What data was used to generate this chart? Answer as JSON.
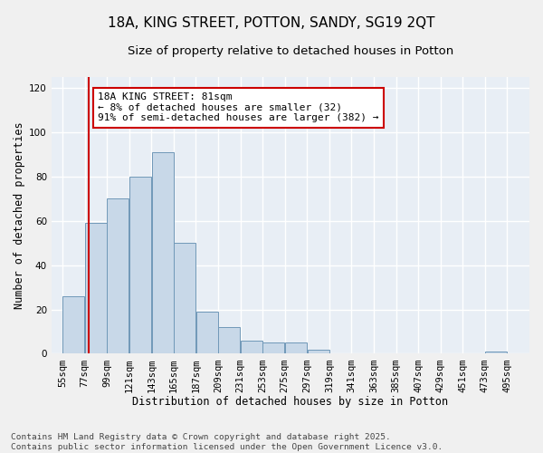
{
  "title_line1": "18A, KING STREET, POTTON, SANDY, SG19 2QT",
  "title_line2": "Size of property relative to detached houses in Potton",
  "xlabel": "Distribution of detached houses by size in Potton",
  "ylabel": "Number of detached properties",
  "bin_labels": [
    "55sqm",
    "77sqm",
    "99sqm",
    "121sqm",
    "143sqm",
    "165sqm",
    "187sqm",
    "209sqm",
    "231sqm",
    "253sqm",
    "275sqm",
    "297sqm",
    "319sqm",
    "341sqm",
    "363sqm",
    "385sqm",
    "407sqm",
    "429sqm",
    "451sqm",
    "473sqm",
    "495sqm"
  ],
  "bin_edges": [
    55,
    77,
    99,
    121,
    143,
    165,
    187,
    209,
    231,
    253,
    275,
    297,
    319,
    341,
    363,
    385,
    407,
    429,
    451,
    473,
    495
  ],
  "bin_width": 22,
  "bar_heights": [
    26,
    59,
    70,
    80,
    91,
    50,
    19,
    12,
    6,
    5,
    5,
    2,
    0,
    0,
    0,
    0,
    0,
    0,
    0,
    1,
    0
  ],
  "bar_color": "#c8d8e8",
  "bar_edge_color": "#7098b8",
  "vline_x": 81,
  "vline_color": "#cc0000",
  "annotation_text": "18A KING STREET: 81sqm\n← 8% of detached houses are smaller (32)\n91% of semi-detached houses are larger (382) →",
  "annotation_box_color": "#ffffff",
  "annotation_box_edge": "#cc0000",
  "ylim": [
    0,
    125
  ],
  "yticks": [
    0,
    20,
    40,
    60,
    80,
    100,
    120
  ],
  "xlim_left": 44,
  "xlim_right": 517,
  "plot_bg": "#e8eef5",
  "fig_bg": "#f0f0f0",
  "grid_color": "#ffffff",
  "footer_line1": "Contains HM Land Registry data © Crown copyright and database right 2025.",
  "footer_line2": "Contains public sector information licensed under the Open Government Licence v3.0.",
  "title_fontsize": 11,
  "subtitle_fontsize": 9.5,
  "axis_label_fontsize": 8.5,
  "tick_fontsize": 7.5,
  "annotation_fontsize": 8,
  "footer_fontsize": 6.8
}
